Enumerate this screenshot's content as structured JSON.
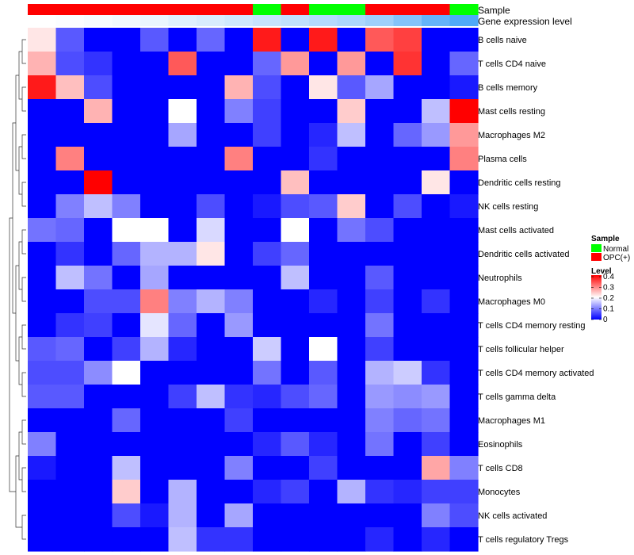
{
  "chart_data": {
    "type": "heatmap",
    "annotation_tracks": [
      {
        "label": "Sample",
        "kind": "categorical",
        "values": [
          "OPC(+)",
          "OPC(+)",
          "OPC(+)",
          "OPC(+)",
          "OPC(+)",
          "OPC(+)",
          "OPC(+)",
          "OPC(+)",
          "Normal",
          "OPC(+)",
          "Normal",
          "Normal",
          "OPC(+)",
          "OPC(+)",
          "OPC(+)",
          "Normal"
        ]
      },
      {
        "label": "Gene expression level",
        "kind": "continuous",
        "values": [
          0.0,
          0.02,
          0.05,
          0.08,
          0.12,
          0.18,
          0.22,
          0.27,
          0.32,
          0.36,
          0.42,
          0.47,
          0.55,
          0.7,
          0.88,
          1.0
        ]
      }
    ],
    "rows": [
      "B cells naive",
      "T cells CD4 naive",
      "B cells memory",
      "Mast cells resting",
      "Macrophages M2",
      "Plasma cells",
      "Dendritic cells resting",
      "NK cells resting",
      "Mast cells activated",
      "Dendritic cells activated",
      "Neutrophils",
      "Macrophages M0",
      "T cells CD4 memory resting",
      "T cells follicular helper",
      "T cells CD4 memory activated",
      "T cells gamma delta",
      "Macrophages M1",
      "Eosinophils",
      "T cells CD8",
      "Monocytes",
      "NK cells activated",
      "T cells regulatory  Tregs"
    ],
    "values": [
      [
        0.22,
        0.07,
        0,
        0,
        0.07,
        0,
        0.08,
        0,
        0.38,
        0,
        0.38,
        0,
        0.33,
        0.35,
        0,
        0
      ],
      [
        0.26,
        0.06,
        0.04,
        0,
        0,
        0.33,
        0,
        0,
        0.08,
        0.28,
        0,
        0.28,
        0,
        0.36,
        0,
        0.08
      ],
      [
        0.38,
        0.25,
        0.06,
        0,
        0,
        0,
        0,
        0.26,
        0.06,
        0,
        0.22,
        0.07,
        0.13,
        0,
        0,
        0.02
      ],
      [
        0,
        0,
        0.26,
        0,
        0,
        0.2,
        0,
        0.1,
        0.05,
        0,
        0,
        0.24,
        0,
        0,
        0.15,
        0.4
      ],
      [
        0,
        0,
        0,
        0,
        0,
        0.13,
        0,
        0,
        0.05,
        0,
        0.03,
        0.15,
        0,
        0.08,
        0.12,
        0.28
      ],
      [
        0,
        0.3,
        0,
        0,
        0,
        0,
        0,
        0.3,
        0,
        0,
        0.04,
        0,
        0,
        0,
        0,
        0.3
      ],
      [
        0,
        0,
        0.4,
        0,
        0,
        0,
        0,
        0,
        0,
        0.25,
        0,
        0,
        0,
        0,
        0.22,
        0
      ],
      [
        0,
        0.1,
        0.15,
        0.1,
        0,
        0,
        0.06,
        0,
        0.02,
        0.06,
        0.07,
        0.24,
        0,
        0.06,
        0,
        0.02
      ],
      [
        0.09,
        0.08,
        0,
        0.2,
        0.2,
        0,
        0.17,
        0,
        0,
        0.2,
        0,
        0.09,
        0.06,
        0,
        0,
        0
      ],
      [
        0,
        0.04,
        0,
        0.08,
        0.14,
        0.14,
        0.22,
        0,
        0.05,
        0.08,
        0,
        0,
        0,
        0,
        0,
        0
      ],
      [
        0,
        0.15,
        0.09,
        0,
        0.13,
        0,
        0,
        0,
        0,
        0.15,
        0,
        0,
        0.07,
        0,
        0,
        0
      ],
      [
        0,
        0,
        0.06,
        0.06,
        0.3,
        0.1,
        0.14,
        0.1,
        0,
        0,
        0.03,
        0,
        0.05,
        0,
        0.04,
        0
      ],
      [
        0,
        0.04,
        0.05,
        0,
        0.18,
        0.08,
        0,
        0.12,
        0,
        0,
        0,
        0,
        0.09,
        0,
        0,
        0
      ],
      [
        0.07,
        0.08,
        0,
        0.05,
        0.14,
        0.03,
        0,
        0,
        0.16,
        0,
        0.2,
        0,
        0.05,
        0,
        0,
        0
      ],
      [
        0.06,
        0.06,
        0.11,
        0.2,
        0,
        0,
        0,
        0,
        0.09,
        0,
        0.07,
        0,
        0.14,
        0.16,
        0.04,
        0
      ],
      [
        0.07,
        0.07,
        0,
        0,
        0,
        0.05,
        0.15,
        0.04,
        0.03,
        0.06,
        0.08,
        0,
        0.12,
        0.11,
        0.12,
        0
      ],
      [
        0,
        0,
        0,
        0.08,
        0,
        0,
        0,
        0.05,
        0,
        0,
        0,
        0,
        0.1,
        0.08,
        0.09,
        0
      ],
      [
        0.1,
        0,
        0,
        0,
        0,
        0,
        0,
        0,
        0.03,
        0.07,
        0.03,
        0,
        0.09,
        0,
        0.05,
        0
      ],
      [
        0.02,
        0,
        0,
        0.15,
        0,
        0,
        0,
        0.1,
        0,
        0,
        0.05,
        0,
        0,
        0,
        0.27,
        0.1
      ],
      [
        0,
        0,
        0,
        0.24,
        0,
        0.14,
        0,
        0,
        0.03,
        0.05,
        0,
        0.14,
        0.04,
        0.03,
        0.05,
        0.05
      ],
      [
        0,
        0,
        0,
        0.06,
        0.02,
        0.14,
        0,
        0.13,
        0,
        0,
        0,
        0,
        0,
        0,
        0.1,
        0.06
      ],
      [
        0,
        0,
        0,
        0,
        0,
        0.15,
        0.04,
        0.04,
        0,
        0,
        0,
        0,
        0.03,
        0,
        0.03,
        0
      ]
    ],
    "color_scale": {
      "low": "#0000FF",
      "mid": "#FFFFFF",
      "high": "#FF0000",
      "min": 0,
      "max": 0.4,
      "breaks": [
        0,
        0.1,
        0.2,
        0.3,
        0.4
      ]
    },
    "track_colors": {
      "Normal": "#00FF00",
      "OPC(+)": "#FF0000",
      "level_low": "#FFFFFF",
      "level_high": "#4FA9F8"
    },
    "legend_sample": {
      "title": "Sample",
      "entries": [
        "Normal",
        "OPC(+)"
      ]
    },
    "legend_level": {
      "title": "Level",
      "ticks": [
        "0.4",
        "0.3",
        "0.2",
        "0.1",
        "0"
      ]
    },
    "dendrogram": "row clustering tree drawn on left edge",
    "legend_placement": "right"
  }
}
